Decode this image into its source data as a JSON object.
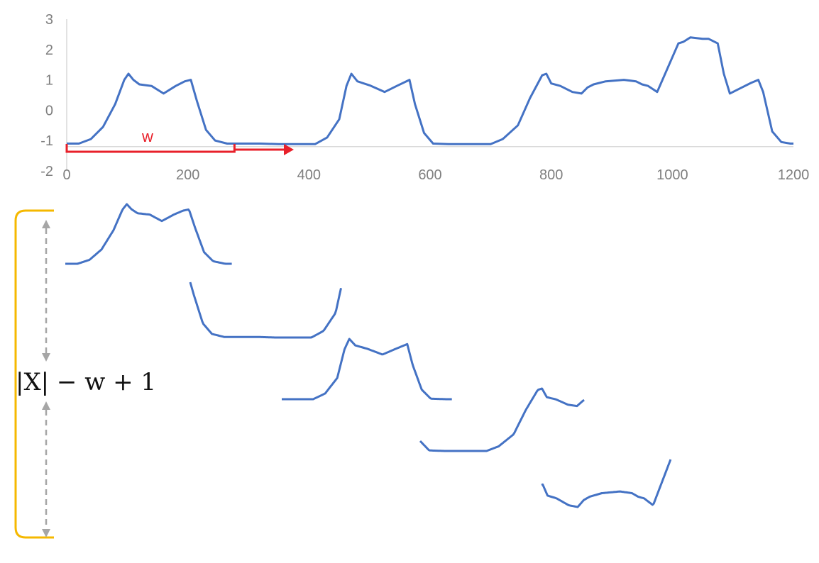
{
  "chart_data": {
    "type": "line",
    "x_ticks": [
      "0",
      "200",
      "400",
      "600",
      "800",
      "1000",
      "1200"
    ],
    "y_ticks": [
      "3",
      "2",
      "1",
      "0",
      "-1",
      "-2"
    ],
    "xlim": [
      0,
      1200
    ],
    "ylim": [
      -2,
      3
    ],
    "grid": false,
    "colors": {
      "series": "#4472c4",
      "window_marker": "#e8202a",
      "bracket": "#f5b800",
      "arrow": "#a6a6a6"
    },
    "series": [
      {
        "x": [
          0,
          20,
          40,
          60,
          80,
          95,
          102,
          110,
          120,
          140,
          160,
          180,
          195,
          205,
          215,
          230,
          245,
          265,
          290,
          320,
          350,
          380,
          410,
          430,
          450,
          462,
          470,
          480,
          500,
          525,
          545,
          566,
          575,
          590,
          605,
          630,
          660,
          700,
          720,
          745,
          765,
          785,
          792,
          800,
          815,
          835,
          850,
          860,
          870,
          890,
          920,
          940,
          950,
          960,
          975,
          1010,
          1018,
          1030,
          1050,
          1060,
          1075,
          1085,
          1095,
          1110,
          1130,
          1142,
          1150,
          1165,
          1180,
          1195,
          1200
        ],
        "values": [
          -1.1,
          -1.1,
          -0.95,
          -0.55,
          0.2,
          1.0,
          1.2,
          1.0,
          0.85,
          0.8,
          0.55,
          0.8,
          0.95,
          1.0,
          0.3,
          -0.65,
          -1.0,
          -1.1,
          -1.1,
          -1.1,
          -1.12,
          -1.12,
          -1.12,
          -0.9,
          -0.3,
          0.8,
          1.2,
          0.95,
          0.82,
          0.6,
          0.8,
          1.0,
          0.2,
          -0.75,
          -1.1,
          -1.12,
          -1.12,
          -1.12,
          -0.95,
          -0.5,
          0.4,
          1.15,
          1.2,
          0.88,
          0.8,
          0.6,
          0.55,
          0.75,
          0.85,
          0.95,
          1.0,
          0.95,
          0.85,
          0.8,
          0.6,
          2.2,
          2.25,
          2.4,
          2.35,
          2.35,
          2.2,
          1.2,
          0.55,
          0.7,
          0.9,
          1.0,
          0.6,
          -0.7,
          -1.05,
          -1.1,
          -1.1
        ]
      }
    ],
    "annotation": {
      "window_label": "w",
      "window_end": 277,
      "arrow_end": 375
    }
  },
  "formula": "|X| − w + 1"
}
